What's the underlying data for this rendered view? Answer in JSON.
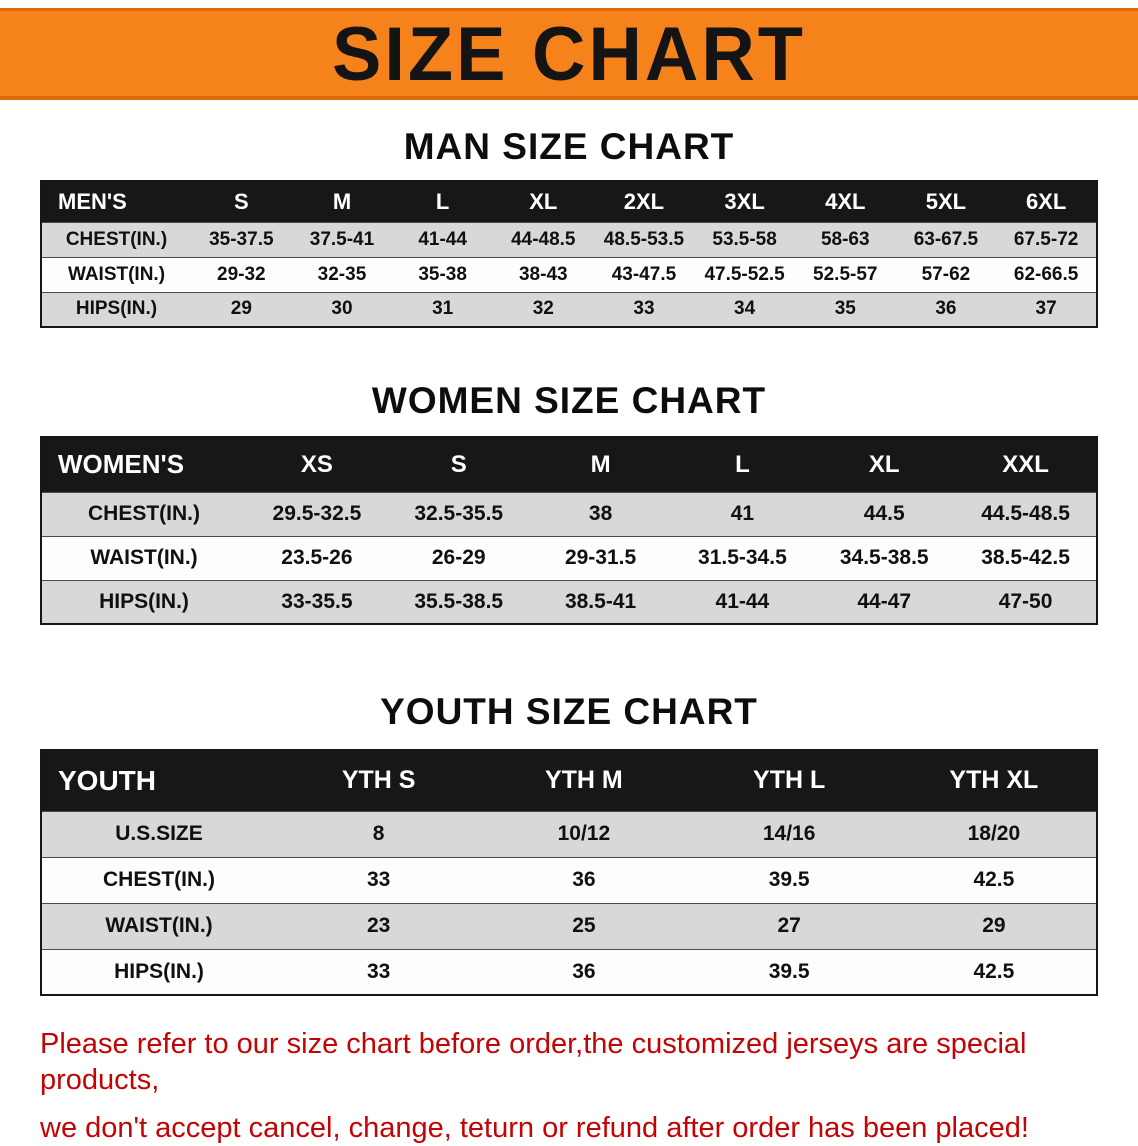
{
  "banner": {
    "title": "SIZE CHART",
    "bg_color": "#f6821c"
  },
  "sections": [
    {
      "heading": "MAN SIZE CHART",
      "table": {
        "header": [
          "MEN'S",
          "S",
          "M",
          "L",
          "XL",
          "2XL",
          "3XL",
          "4XL",
          "5XL",
          "6XL"
        ],
        "rows": [
          [
            "CHEST(IN.)",
            "35-37.5",
            "37.5-41",
            "41-44",
            "44-48.5",
            "48.5-53.5",
            "53.5-58",
            "58-63",
            "63-67.5",
            "67.5-72"
          ],
          [
            "WAIST(IN.)",
            "29-32",
            "32-35",
            "35-38",
            "38-43",
            "43-47.5",
            "47.5-52.5",
            "52.5-57",
            "57-62",
            "62-66.5"
          ],
          [
            "HIPS(IN.)",
            "29",
            "30",
            "31",
            "32",
            "33",
            "34",
            "35",
            "36",
            "37"
          ]
        ]
      }
    },
    {
      "heading": "WOMEN SIZE CHART",
      "table": {
        "header": [
          "WOMEN'S",
          "XS",
          "S",
          "M",
          "L",
          "XL",
          "XXL"
        ],
        "rows": [
          [
            "CHEST(IN.)",
            "29.5-32.5",
            "32.5-35.5",
            "38",
            "41",
            "44.5",
            "44.5-48.5"
          ],
          [
            "WAIST(IN.)",
            "23.5-26",
            "26-29",
            "29-31.5",
            "31.5-34.5",
            "34.5-38.5",
            "38.5-42.5"
          ],
          [
            "HIPS(IN.)",
            "33-35.5",
            "35.5-38.5",
            "38.5-41",
            "41-44",
            "44-47",
            "47-50"
          ]
        ]
      }
    },
    {
      "heading": "YOUTH SIZE CHART",
      "table": {
        "header": [
          "YOUTH",
          "YTH S",
          "YTH M",
          "YTH L",
          "YTH XL"
        ],
        "rows": [
          [
            "U.S.SIZE",
            "8",
            "10/12",
            "14/16",
            "18/20"
          ],
          [
            "CHEST(IN.)",
            "33",
            "36",
            "39.5",
            "42.5"
          ],
          [
            "WAIST(IN.)",
            "23",
            "25",
            "27",
            "29"
          ],
          [
            "HIPS(IN.)",
            "33",
            "36",
            "39.5",
            "42.5"
          ]
        ]
      }
    }
  ],
  "footer": {
    "line1": "Please refer to our size chart before order,the customized jerseys are special products,",
    "line2": "we don't accept cancel, change, teturn or refund after order has been placed!",
    "text_color": "#c40404"
  }
}
